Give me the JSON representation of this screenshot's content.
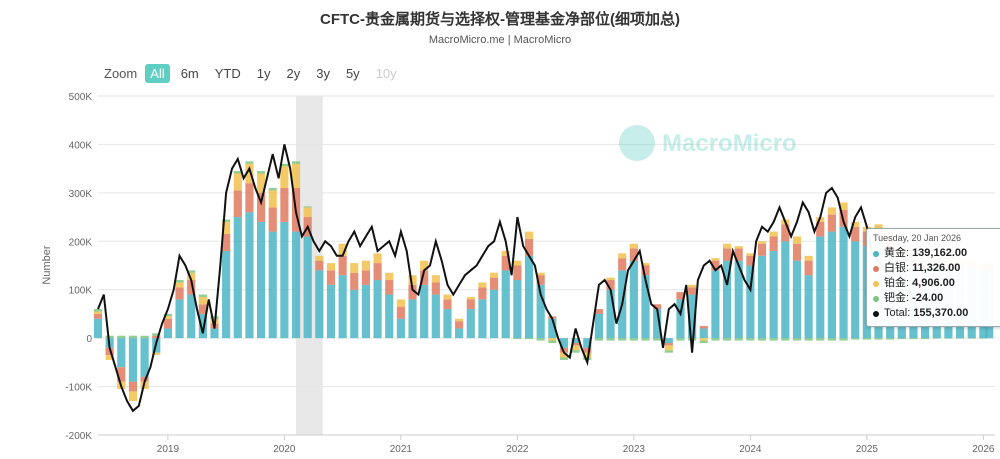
{
  "header": {
    "title": "CFTC-贵金属期货与选择权-管理基金净部位(细项加总)",
    "subtitle": "MacroMicro.me | MacroMicro"
  },
  "zoom": {
    "label": "Zoom",
    "buttons": [
      "All",
      "6m",
      "YTD",
      "1y",
      "2y",
      "3y",
      "5y",
      "10y"
    ],
    "active": "All",
    "disabled": [
      "10y"
    ]
  },
  "watermark": "MacroMicro",
  "tooltip": {
    "date": "Tuesday, 20 Jan 2026",
    "rows": [
      {
        "name": "黄金:",
        "value": "139,162.00",
        "color": "#4bb5c4"
      },
      {
        "name": "白银:",
        "value": "11,326.00",
        "color": "#e07a5f"
      },
      {
        "name": "铂金:",
        "value": "4,906.00",
        "color": "#f2c14e"
      },
      {
        "name": "钯金:",
        "value": "-24.00",
        "color": "#7cc47f"
      },
      {
        "name": "Total:",
        "value": "155,370.00",
        "color": "#111111"
      }
    ]
  },
  "chart_data": {
    "type": "bar",
    "stacked": true,
    "title": "CFTC-贵金属期货与选择权-管理基金净部位(细项加总)",
    "ylabel": "Number",
    "ylim": [
      -200000,
      500000
    ],
    "yticks": [
      -200000,
      -100000,
      0,
      100000,
      200000,
      300000,
      400000,
      500000
    ],
    "ytick_labels": [
      "-200K",
      "-100K",
      "0",
      "100K",
      "200K",
      "300K",
      "400K",
      "500K"
    ],
    "xlim": [
      2018.4,
      2026.1
    ],
    "xticks": [
      2019,
      2020,
      2021,
      2022,
      2023,
      2024,
      2025,
      2026
    ],
    "xtick_labels": [
      "2019",
      "2020",
      "2021",
      "2022",
      "2023",
      "2024",
      "2025",
      "2026"
    ],
    "shaded_band": [
      2020.1,
      2020.33
    ],
    "legend_position": "none",
    "series": [
      {
        "name": "黄金",
        "color": "#4bb5c4",
        "x": [
          2018.4,
          2018.5,
          2018.6,
          2018.7,
          2018.8,
          2018.9,
          2019.0,
          2019.1,
          2019.2,
          2019.3,
          2019.4,
          2019.5,
          2019.6,
          2019.7,
          2019.8,
          2019.9,
          2020.0,
          2020.1,
          2020.2,
          2020.3,
          2020.4,
          2020.5,
          2020.6,
          2020.7,
          2020.8,
          2020.9,
          2021.0,
          2021.1,
          2021.2,
          2021.3,
          2021.4,
          2021.5,
          2021.6,
          2021.7,
          2021.8,
          2021.9,
          2022.0,
          2022.1,
          2022.2,
          2022.3,
          2022.4,
          2022.5,
          2022.6,
          2022.7,
          2022.8,
          2022.9,
          2023.0,
          2023.1,
          2023.2,
          2023.3,
          2023.4,
          2023.5,
          2023.6,
          2023.7,
          2023.8,
          2023.9,
          2024.0,
          2024.1,
          2024.2,
          2024.3,
          2024.4,
          2024.5,
          2024.6,
          2024.7,
          2024.8,
          2024.9,
          2025.0,
          2025.1,
          2025.2,
          2025.3,
          2025.4,
          2025.5,
          2025.6,
          2025.7,
          2025.8,
          2025.9,
          2026.0,
          2026.05
        ],
        "values": [
          40000,
          -20000,
          -60000,
          -90000,
          -80000,
          -30000,
          20000,
          80000,
          90000,
          50000,
          20000,
          180000,
          250000,
          260000,
          240000,
          220000,
          240000,
          220000,
          210000,
          140000,
          110000,
          130000,
          100000,
          110000,
          120000,
          90000,
          40000,
          80000,
          110000,
          90000,
          60000,
          20000,
          60000,
          80000,
          100000,
          140000,
          120000,
          170000,
          110000,
          40000,
          -20000,
          -10000,
          -20000,
          50000,
          100000,
          140000,
          160000,
          130000,
          60000,
          -10000,
          80000,
          90000,
          20000,
          140000,
          160000,
          160000,
          150000,
          170000,
          180000,
          200000,
          160000,
          130000,
          210000,
          220000,
          230000,
          200000,
          190000,
          200000,
          180000,
          160000,
          150000,
          140000,
          150000,
          140000,
          140000,
          145000,
          139162,
          140000
        ]
      },
      {
        "name": "白银",
        "color": "#e07a5f",
        "x": [
          2018.4,
          2018.5,
          2018.6,
          2018.7,
          2018.8,
          2018.9,
          2019.0,
          2019.1,
          2019.2,
          2019.3,
          2019.4,
          2019.5,
          2019.6,
          2019.7,
          2019.8,
          2019.9,
          2020.0,
          2020.1,
          2020.2,
          2020.3,
          2020.4,
          2020.5,
          2020.6,
          2020.7,
          2020.8,
          2020.9,
          2021.0,
          2021.1,
          2021.2,
          2021.3,
          2021.4,
          2021.5,
          2021.6,
          2021.7,
          2021.8,
          2021.9,
          2022.0,
          2022.1,
          2022.2,
          2022.3,
          2022.4,
          2022.5,
          2022.6,
          2022.7,
          2022.8,
          2022.9,
          2023.0,
          2023.1,
          2023.2,
          2023.3,
          2023.4,
          2023.5,
          2023.6,
          2023.7,
          2023.8,
          2023.9,
          2024.0,
          2024.1,
          2024.2,
          2024.3,
          2024.4,
          2024.5,
          2024.6,
          2024.7,
          2024.8,
          2024.9,
          2025.0,
          2025.1,
          2025.2,
          2025.3,
          2025.4,
          2025.5,
          2025.6,
          2025.7,
          2025.8,
          2025.9,
          2026.0,
          2026.05
        ],
        "values": [
          10000,
          -15000,
          -30000,
          -20000,
          -10000,
          5000,
          20000,
          25000,
          30000,
          20000,
          10000,
          35000,
          55000,
          60000,
          60000,
          50000,
          70000,
          90000,
          40000,
          20000,
          30000,
          40000,
          35000,
          30000,
          35000,
          30000,
          25000,
          30000,
          30000,
          25000,
          20000,
          15000,
          20000,
          25000,
          25000,
          30000,
          30000,
          35000,
          20000,
          5000,
          -10000,
          -5000,
          -10000,
          10000,
          20000,
          25000,
          25000,
          20000,
          10000,
          -5000,
          15000,
          15000,
          5000,
          20000,
          25000,
          25000,
          20000,
          25000,
          30000,
          35000,
          35000,
          30000,
          30000,
          35000,
          35000,
          30000,
          30000,
          25000,
          20000,
          20000,
          20000,
          15000,
          15000,
          15000,
          12000,
          12000,
          11326,
          11000
        ]
      },
      {
        "name": "铂金",
        "color": "#f2c14e",
        "x": [
          2018.4,
          2018.5,
          2018.6,
          2018.7,
          2018.8,
          2018.9,
          2019.0,
          2019.1,
          2019.2,
          2019.3,
          2019.4,
          2019.5,
          2019.6,
          2019.7,
          2019.8,
          2019.9,
          2020.0,
          2020.1,
          2020.2,
          2020.3,
          2020.4,
          2020.5,
          2020.6,
          2020.7,
          2020.8,
          2020.9,
          2021.0,
          2021.1,
          2021.2,
          2021.3,
          2021.4,
          2021.5,
          2021.6,
          2021.7,
          2021.8,
          2021.9,
          2022.0,
          2022.1,
          2022.2,
          2022.3,
          2022.4,
          2022.5,
          2022.6,
          2022.7,
          2022.8,
          2022.9,
          2023.0,
          2023.1,
          2023.2,
          2023.3,
          2023.4,
          2023.5,
          2023.6,
          2023.7,
          2023.8,
          2023.9,
          2024.0,
          2024.1,
          2024.2,
          2024.3,
          2024.4,
          2024.5,
          2024.6,
          2024.7,
          2024.8,
          2024.9,
          2025.0,
          2025.1,
          2025.2,
          2025.3,
          2025.4,
          2025.5,
          2025.6,
          2025.7,
          2025.8,
          2025.9,
          2026.0,
          2026.05
        ],
        "values": [
          5000,
          -10000,
          -15000,
          -20000,
          -15000,
          -5000,
          5000,
          10000,
          15000,
          15000,
          10000,
          25000,
          35000,
          40000,
          40000,
          35000,
          45000,
          50000,
          20000,
          10000,
          15000,
          25000,
          20000,
          20000,
          20000,
          15000,
          15000,
          20000,
          20000,
          15000,
          10000,
          5000,
          5000,
          10000,
          10000,
          10000,
          10000,
          15000,
          5000,
          -5000,
          -10000,
          -10000,
          -10000,
          0,
          5000,
          10000,
          10000,
          5000,
          0,
          -10000,
          0,
          5000,
          -5000,
          5000,
          10000,
          5000,
          5000,
          5000,
          10000,
          10000,
          15000,
          10000,
          10000,
          15000,
          15000,
          10000,
          10000,
          10000,
          10000,
          10000,
          8000,
          8000,
          7000,
          6000,
          5000,
          5000,
          4906,
          5000
        ]
      },
      {
        "name": "钯金",
        "color": "#7cc47f",
        "x": [
          2018.4,
          2018.5,
          2018.6,
          2018.7,
          2018.8,
          2018.9,
          2019.0,
          2019.1,
          2019.2,
          2019.3,
          2019.4,
          2019.5,
          2019.6,
          2019.7,
          2019.8,
          2019.9,
          2020.0,
          2020.1,
          2020.2,
          2020.3,
          2020.4,
          2020.5,
          2020.6,
          2020.7,
          2020.8,
          2020.9,
          2021.0,
          2021.1,
          2021.2,
          2021.3,
          2021.4,
          2021.5,
          2021.6,
          2021.7,
          2021.8,
          2021.9,
          2022.0,
          2022.1,
          2022.2,
          2022.3,
          2022.4,
          2022.5,
          2022.6,
          2022.7,
          2022.8,
          2022.9,
          2023.0,
          2023.1,
          2023.2,
          2023.3,
          2023.4,
          2023.5,
          2023.6,
          2023.7,
          2023.8,
          2023.9,
          2024.0,
          2024.1,
          2024.2,
          2024.3,
          2024.4,
          2024.5,
          2024.6,
          2024.7,
          2024.8,
          2024.9,
          2025.0,
          2025.1,
          2025.2,
          2025.3,
          2025.4,
          2025.5,
          2025.6,
          2025.7,
          2025.8,
          2025.9,
          2026.0,
          2026.05
        ],
        "values": [
          5000,
          5000,
          5000,
          5000,
          5000,
          5000,
          5000,
          5000,
          5000,
          5000,
          5000,
          5000,
          5000,
          5000,
          5000,
          5000,
          5000,
          5000,
          2000,
          0,
          0,
          0,
          0,
          0,
          0,
          0,
          0,
          0,
          0,
          0,
          0,
          0,
          0,
          0,
          0,
          0,
          -2000,
          -2000,
          -5000,
          -5000,
          -5000,
          -5000,
          -5000,
          -5000,
          -5000,
          -5000,
          -5000,
          -5000,
          -5000,
          -5000,
          -5000,
          -5000,
          -5000,
          -5000,
          -5000,
          -5000,
          -5000,
          -5000,
          -5000,
          -5000,
          -5000,
          -5000,
          -5000,
          -5000,
          -5000,
          -3000,
          -3000,
          -3000,
          -3000,
          -2000,
          -2000,
          -2000,
          -1000,
          -1000,
          -500,
          -200,
          -24,
          0
        ]
      },
      {
        "name": "Total",
        "color": "#111111",
        "type": "line",
        "x": [
          2018.4,
          2018.45,
          2018.5,
          2018.55,
          2018.6,
          2018.65,
          2018.7,
          2018.75,
          2018.8,
          2018.85,
          2018.9,
          2018.95,
          2019.0,
          2019.05,
          2019.1,
          2019.15,
          2019.2,
          2019.25,
          2019.3,
          2019.35,
          2019.4,
          2019.45,
          2019.5,
          2019.55,
          2019.6,
          2019.65,
          2019.7,
          2019.75,
          2019.8,
          2019.85,
          2019.9,
          2019.95,
          2020.0,
          2020.05,
          2020.1,
          2020.15,
          2020.2,
          2020.25,
          2020.3,
          2020.35,
          2020.4,
          2020.45,
          2020.5,
          2020.55,
          2020.6,
          2020.65,
          2020.7,
          2020.75,
          2020.8,
          2020.85,
          2020.9,
          2020.95,
          2021.0,
          2021.05,
          2021.1,
          2021.15,
          2021.2,
          2021.25,
          2021.3,
          2021.35,
          2021.4,
          2021.45,
          2021.5,
          2021.55,
          2021.6,
          2021.65,
          2021.7,
          2021.75,
          2021.8,
          2021.85,
          2021.9,
          2021.95,
          2022.0,
          2022.05,
          2022.1,
          2022.15,
          2022.2,
          2022.25,
          2022.3,
          2022.35,
          2022.4,
          2022.45,
          2022.5,
          2022.55,
          2022.6,
          2022.65,
          2022.7,
          2022.75,
          2022.8,
          2022.85,
          2022.9,
          2022.95,
          2023.0,
          2023.05,
          2023.1,
          2023.15,
          2023.2,
          2023.25,
          2023.3,
          2023.35,
          2023.4,
          2023.45,
          2023.5,
          2023.55,
          2023.6,
          2023.65,
          2023.7,
          2023.75,
          2023.8,
          2023.85,
          2023.9,
          2023.95,
          2024.0,
          2024.05,
          2024.1,
          2024.15,
          2024.2,
          2024.25,
          2024.3,
          2024.35,
          2024.4,
          2024.45,
          2024.5,
          2024.55,
          2024.6,
          2024.65,
          2024.7,
          2024.75,
          2024.8,
          2024.85,
          2024.9,
          2024.95,
          2025.0,
          2025.05,
          2025.1,
          2025.15,
          2025.2
        ],
        "values": [
          60000,
          90000,
          -20000,
          -60000,
          -100000,
          -130000,
          -150000,
          -140000,
          -90000,
          -60000,
          -10000,
          30000,
          60000,
          100000,
          170000,
          150000,
          120000,
          60000,
          10000,
          80000,
          20000,
          150000,
          300000,
          350000,
          370000,
          330000,
          350000,
          310000,
          280000,
          330000,
          380000,
          330000,
          400000,
          350000,
          260000,
          210000,
          230000,
          200000,
          180000,
          200000,
          190000,
          170000,
          170000,
          200000,
          220000,
          190000,
          210000,
          230000,
          180000,
          190000,
          200000,
          170000,
          220000,
          180000,
          100000,
          90000,
          140000,
          150000,
          200000,
          160000,
          110000,
          90000,
          110000,
          130000,
          140000,
          150000,
          170000,
          190000,
          200000,
          240000,
          200000,
          130000,
          250000,
          190000,
          170000,
          150000,
          90000,
          60000,
          40000,
          0,
          -30000,
          -40000,
          20000,
          -20000,
          -50000,
          30000,
          110000,
          120000,
          100000,
          30000,
          70000,
          140000,
          160000,
          180000,
          120000,
          70000,
          60000,
          -20000,
          60000,
          70000,
          50000,
          110000,
          -30000,
          120000,
          150000,
          160000,
          140000,
          150000,
          110000,
          180000,
          150000,
          120000,
          100000,
          200000,
          230000,
          220000,
          240000,
          270000,
          240000,
          210000,
          240000,
          280000,
          260000,
          220000,
          250000,
          300000,
          310000,
          290000,
          240000,
          210000,
          250000,
          270000,
          230000,
          170000,
          160000,
          140000,
          155370
        ]
      }
    ]
  }
}
